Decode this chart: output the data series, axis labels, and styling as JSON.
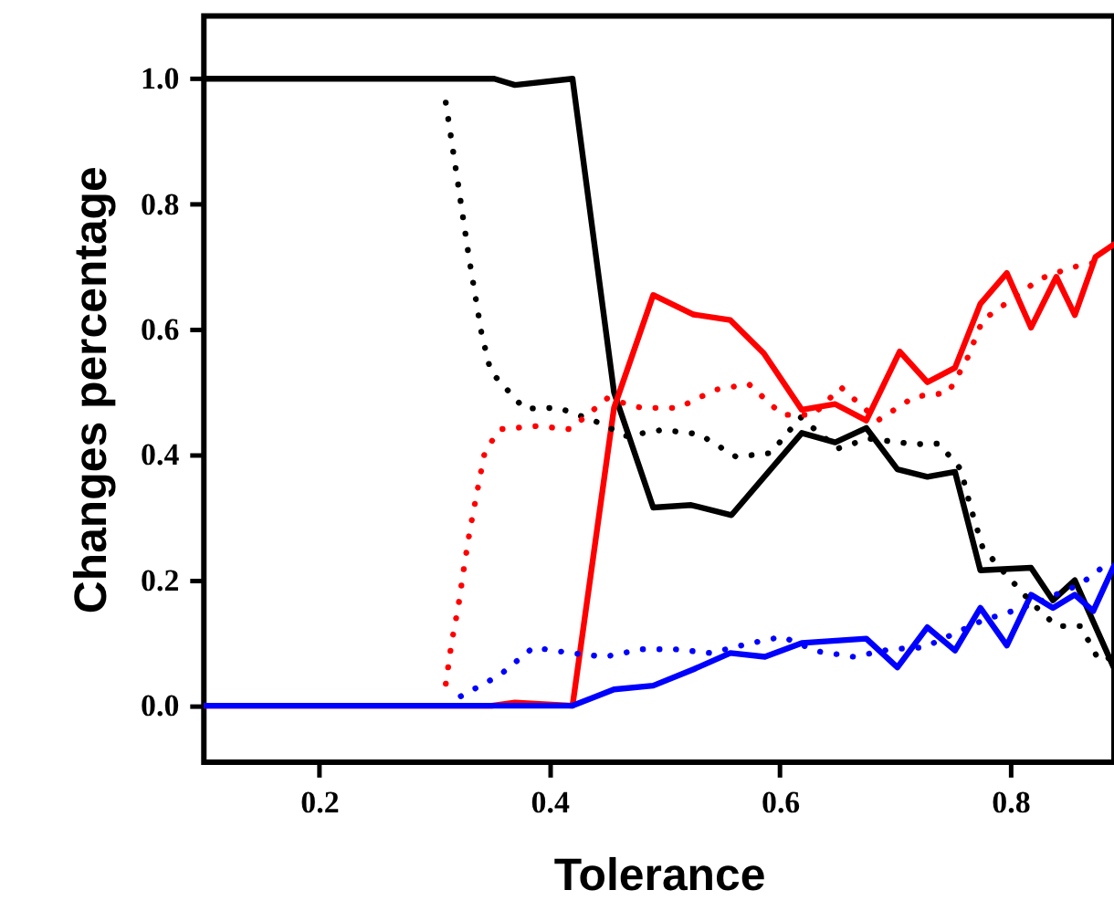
{
  "chart_data": {
    "type": "line",
    "xlabel": "Tolerance",
    "ylabel": "Changes percentage",
    "xlim": [
      0.1,
      0.89
    ],
    "ylim": [
      -0.09,
      1.1
    ],
    "xticks": [
      0.2,
      0.4,
      0.6,
      0.8
    ],
    "yticks": [
      {
        "value": 0,
        "label": "0.0"
      },
      0.2,
      0.4,
      0.6,
      0.8,
      {
        "value": 1,
        "label": "1.0"
      }
    ],
    "grid": false,
    "marker": "none",
    "series": [
      {
        "color": "#000000",
        "line_style": "solid",
        "x": [
          0.1,
          0.352,
          0.37,
          0.42,
          0.456,
          0.49,
          0.523,
          0.558,
          0.619,
          0.648,
          0.675,
          0.702,
          0.728,
          0.752,
          0.774,
          0.818,
          0.837,
          0.856,
          0.89
        ],
        "values": [
          1.0,
          1.0,
          0.99,
          1.0,
          0.5,
          0.316,
          0.32,
          0.304,
          0.435,
          0.42,
          0.443,
          0.377,
          0.365,
          0.373,
          0.216,
          0.22,
          0.168,
          0.2,
          0.06
        ]
      },
      {
        "color": "#ff0000",
        "line_style": "solid",
        "x": [
          0.1,
          0.35,
          0.37,
          0.42,
          0.456,
          0.49,
          0.525,
          0.557,
          0.586,
          0.619,
          0.648,
          0.675,
          0.704,
          0.728,
          0.752,
          0.774,
          0.797,
          0.818,
          0.84,
          0.856,
          0.874,
          0.89
        ],
        "values": [
          0,
          0,
          0.005,
          0,
          0.475,
          0.655,
          0.624,
          0.615,
          0.562,
          0.472,
          0.481,
          0.455,
          0.565,
          0.516,
          0.539,
          0.641,
          0.69,
          0.603,
          0.684,
          0.623,
          0.716,
          0.736
        ]
      },
      {
        "color": "#0000ff",
        "line_style": "solid",
        "x": [
          0.1,
          0.42,
          0.456,
          0.49,
          0.525,
          0.557,
          0.587,
          0.619,
          0.675,
          0.702,
          0.728,
          0.752,
          0.774,
          0.797,
          0.818,
          0.837,
          0.856,
          0.872,
          0.89
        ],
        "values": [
          0,
          0,
          0.026,
          0.032,
          0.058,
          0.084,
          0.078,
          0.1,
          0.107,
          0.061,
          0.125,
          0.088,
          0.156,
          0.096,
          0.177,
          0.156,
          0.177,
          0.151,
          0.223
        ]
      },
      {
        "color": "#000000",
        "line_style": "dotted",
        "x": [
          0.31,
          0.32,
          0.33,
          0.341,
          0.349,
          0.378,
          0.408,
          0.445,
          0.466,
          0.498,
          0.53,
          0.562,
          0.592,
          0.618,
          0.65,
          0.677,
          0.717,
          0.738,
          0.757,
          0.765,
          0.776,
          0.792,
          0.818,
          0.84,
          0.861,
          0.877,
          0.89
        ],
        "values": [
          0.962,
          0.84,
          0.716,
          0.594,
          0.533,
          0.474,
          0.475,
          0.45,
          0.43,
          0.44,
          0.433,
          0.397,
          0.403,
          0.46,
          0.41,
          0.426,
          0.417,
          0.418,
          0.377,
          0.32,
          0.252,
          0.218,
          0.165,
          0.127,
          0.127,
          0.072,
          0.078
        ]
      },
      {
        "color": "#ff0000",
        "line_style": "dotted",
        "x": [
          0.31,
          0.315,
          0.321,
          0.326,
          0.331,
          0.338,
          0.344,
          0.357,
          0.389,
          0.418,
          0.45,
          0.48,
          0.512,
          0.544,
          0.573,
          0.602,
          0.629,
          0.653,
          0.685,
          0.717,
          0.746,
          0.762,
          0.776,
          0.826,
          0.853,
          0.882
        ],
        "values": [
          0.035,
          0.1,
          0.16,
          0.223,
          0.281,
          0.349,
          0.406,
          0.441,
          0.446,
          0.441,
          0.49,
          0.475,
          0.475,
          0.504,
          0.513,
          0.464,
          0.464,
          0.508,
          0.455,
          0.493,
          0.499,
          0.551,
          0.615,
          0.681,
          0.699,
          0.71
        ]
      },
      {
        "color": "#0000ff",
        "line_style": "dotted",
        "x": [
          0.323,
          0.357,
          0.386,
          0.418,
          0.448,
          0.48,
          0.509,
          0.54,
          0.573,
          0.602,
          0.632,
          0.664,
          0.696,
          0.725,
          0.749,
          0.776,
          0.802,
          0.824,
          0.861,
          0.888
        ],
        "values": [
          0.015,
          0.049,
          0.093,
          0.084,
          0.078,
          0.09,
          0.09,
          0.084,
          0.099,
          0.11,
          0.087,
          0.078,
          0.09,
          0.093,
          0.113,
          0.136,
          0.151,
          0.165,
          0.194,
          0.232
        ]
      }
    ]
  }
}
